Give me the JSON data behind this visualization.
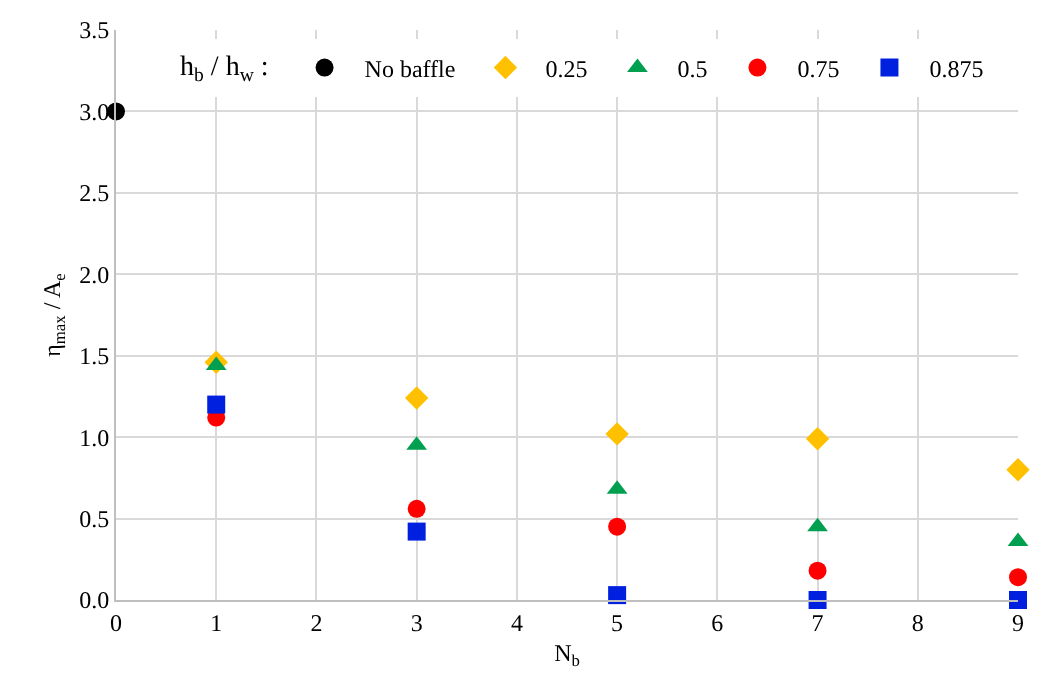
{
  "chart_data": {
    "type": "scatter",
    "xlabel": "N$_{b}$",
    "ylabel": "η$_{max}$ / A$_{e}$",
    "legend_title": "h$_{b}$ / h$_{w}$ :",
    "xlim": [
      0,
      9
    ],
    "xticks": [
      0,
      1,
      2,
      3,
      4,
      5,
      6,
      7,
      8,
      9
    ],
    "ylim": [
      0,
      3.5
    ],
    "yticks": [
      {
        "value": 0,
        "label": "0.0"
      },
      {
        "value": 0.5,
        "label": "0.5"
      },
      {
        "value": 1,
        "label": "1.0"
      },
      {
        "value": 1.5,
        "label": "1.5"
      },
      {
        "value": 2,
        "label": "2.0"
      },
      {
        "value": 2.5,
        "label": "2.5"
      },
      {
        "value": 3,
        "label": "3.0"
      },
      {
        "value": 3.5,
        "label": "3.5"
      }
    ],
    "grid": true,
    "legend": "top",
    "series": [
      {
        "name": "No baffle",
        "color": "#000000",
        "marker": "circle",
        "x": [
          0
        ],
        "values": [
          3.0
        ]
      },
      {
        "name": "0.25",
        "color": "#ffc000",
        "marker": "diamond",
        "x": [
          1,
          3,
          5,
          7,
          9
        ],
        "values": [
          1.46,
          1.24,
          1.02,
          0.99,
          0.8
        ]
      },
      {
        "name": "0.5",
        "color": "#00a050",
        "marker": "triangle",
        "x": [
          1,
          3,
          5,
          7,
          9
        ],
        "values": [
          1.44,
          0.95,
          0.68,
          0.45,
          0.36
        ]
      },
      {
        "name": "0.75",
        "color": "#ff0000",
        "marker": "circle",
        "x": [
          1,
          3,
          5,
          7,
          9
        ],
        "values": [
          1.12,
          0.56,
          0.45,
          0.18,
          0.14
        ]
      },
      {
        "name": "0.875",
        "color": "#0020e0",
        "marker": "square",
        "x": [
          1,
          3,
          5,
          7,
          9
        ],
        "values": [
          1.2,
          0.42,
          0.03,
          0.0,
          0.0
        ]
      }
    ]
  }
}
